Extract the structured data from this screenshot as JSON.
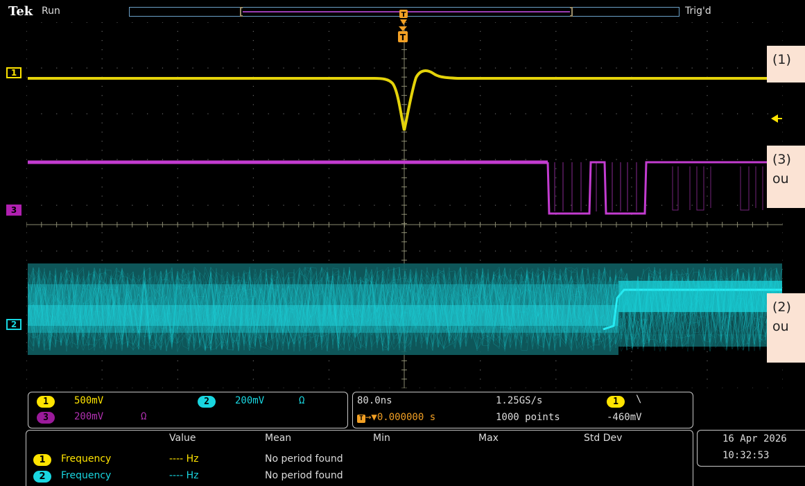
{
  "header": {
    "brand": "Tek",
    "acq_state": "Run",
    "trigger_status": "Trig'd"
  },
  "colors": {
    "ch1": "#ffe400",
    "ch2": "#19d6e0",
    "ch3": "#b020b0",
    "trigger": "#f2a024",
    "grid": "#6a6a6a"
  },
  "channel_markers": {
    "ch1": "1",
    "ch2": "2",
    "ch3": "3"
  },
  "annotations": {
    "a1": "(1)",
    "a3_line1": "(3)",
    "a3_line2": "ou",
    "a2_line1": "(2)",
    "a2_line2": "ou"
  },
  "channel_panel": {
    "ch1_num": "1",
    "ch1_scale": "500mV",
    "ch2_num": "2",
    "ch2_scale": "200mV",
    "ch2_coupling": "Ω",
    "ch3_num": "3",
    "ch3_scale": "200mV",
    "ch3_coupling": "Ω"
  },
  "timebase_panel": {
    "horizontal_scale": "80.0ns",
    "sample_rate": "1.25GS/s",
    "trigger_source": "1",
    "trigger_slope": "\\",
    "trigger_position": "0.000000 s",
    "record_length": "1000 points",
    "trigger_level": "-460mV"
  },
  "measurements": {
    "headers": [
      "Value",
      "Mean",
      "Min",
      "Max",
      "Std Dev"
    ],
    "rows": [
      {
        "ch": "1",
        "name": "Frequency",
        "value": "---- Hz",
        "mean": "No period found"
      },
      {
        "ch": "2",
        "name": "Frequency",
        "value": "---- Hz",
        "mean": "No period found"
      }
    ]
  },
  "datetime": {
    "date": "16 Apr 2026",
    "time": "10:32:53"
  }
}
